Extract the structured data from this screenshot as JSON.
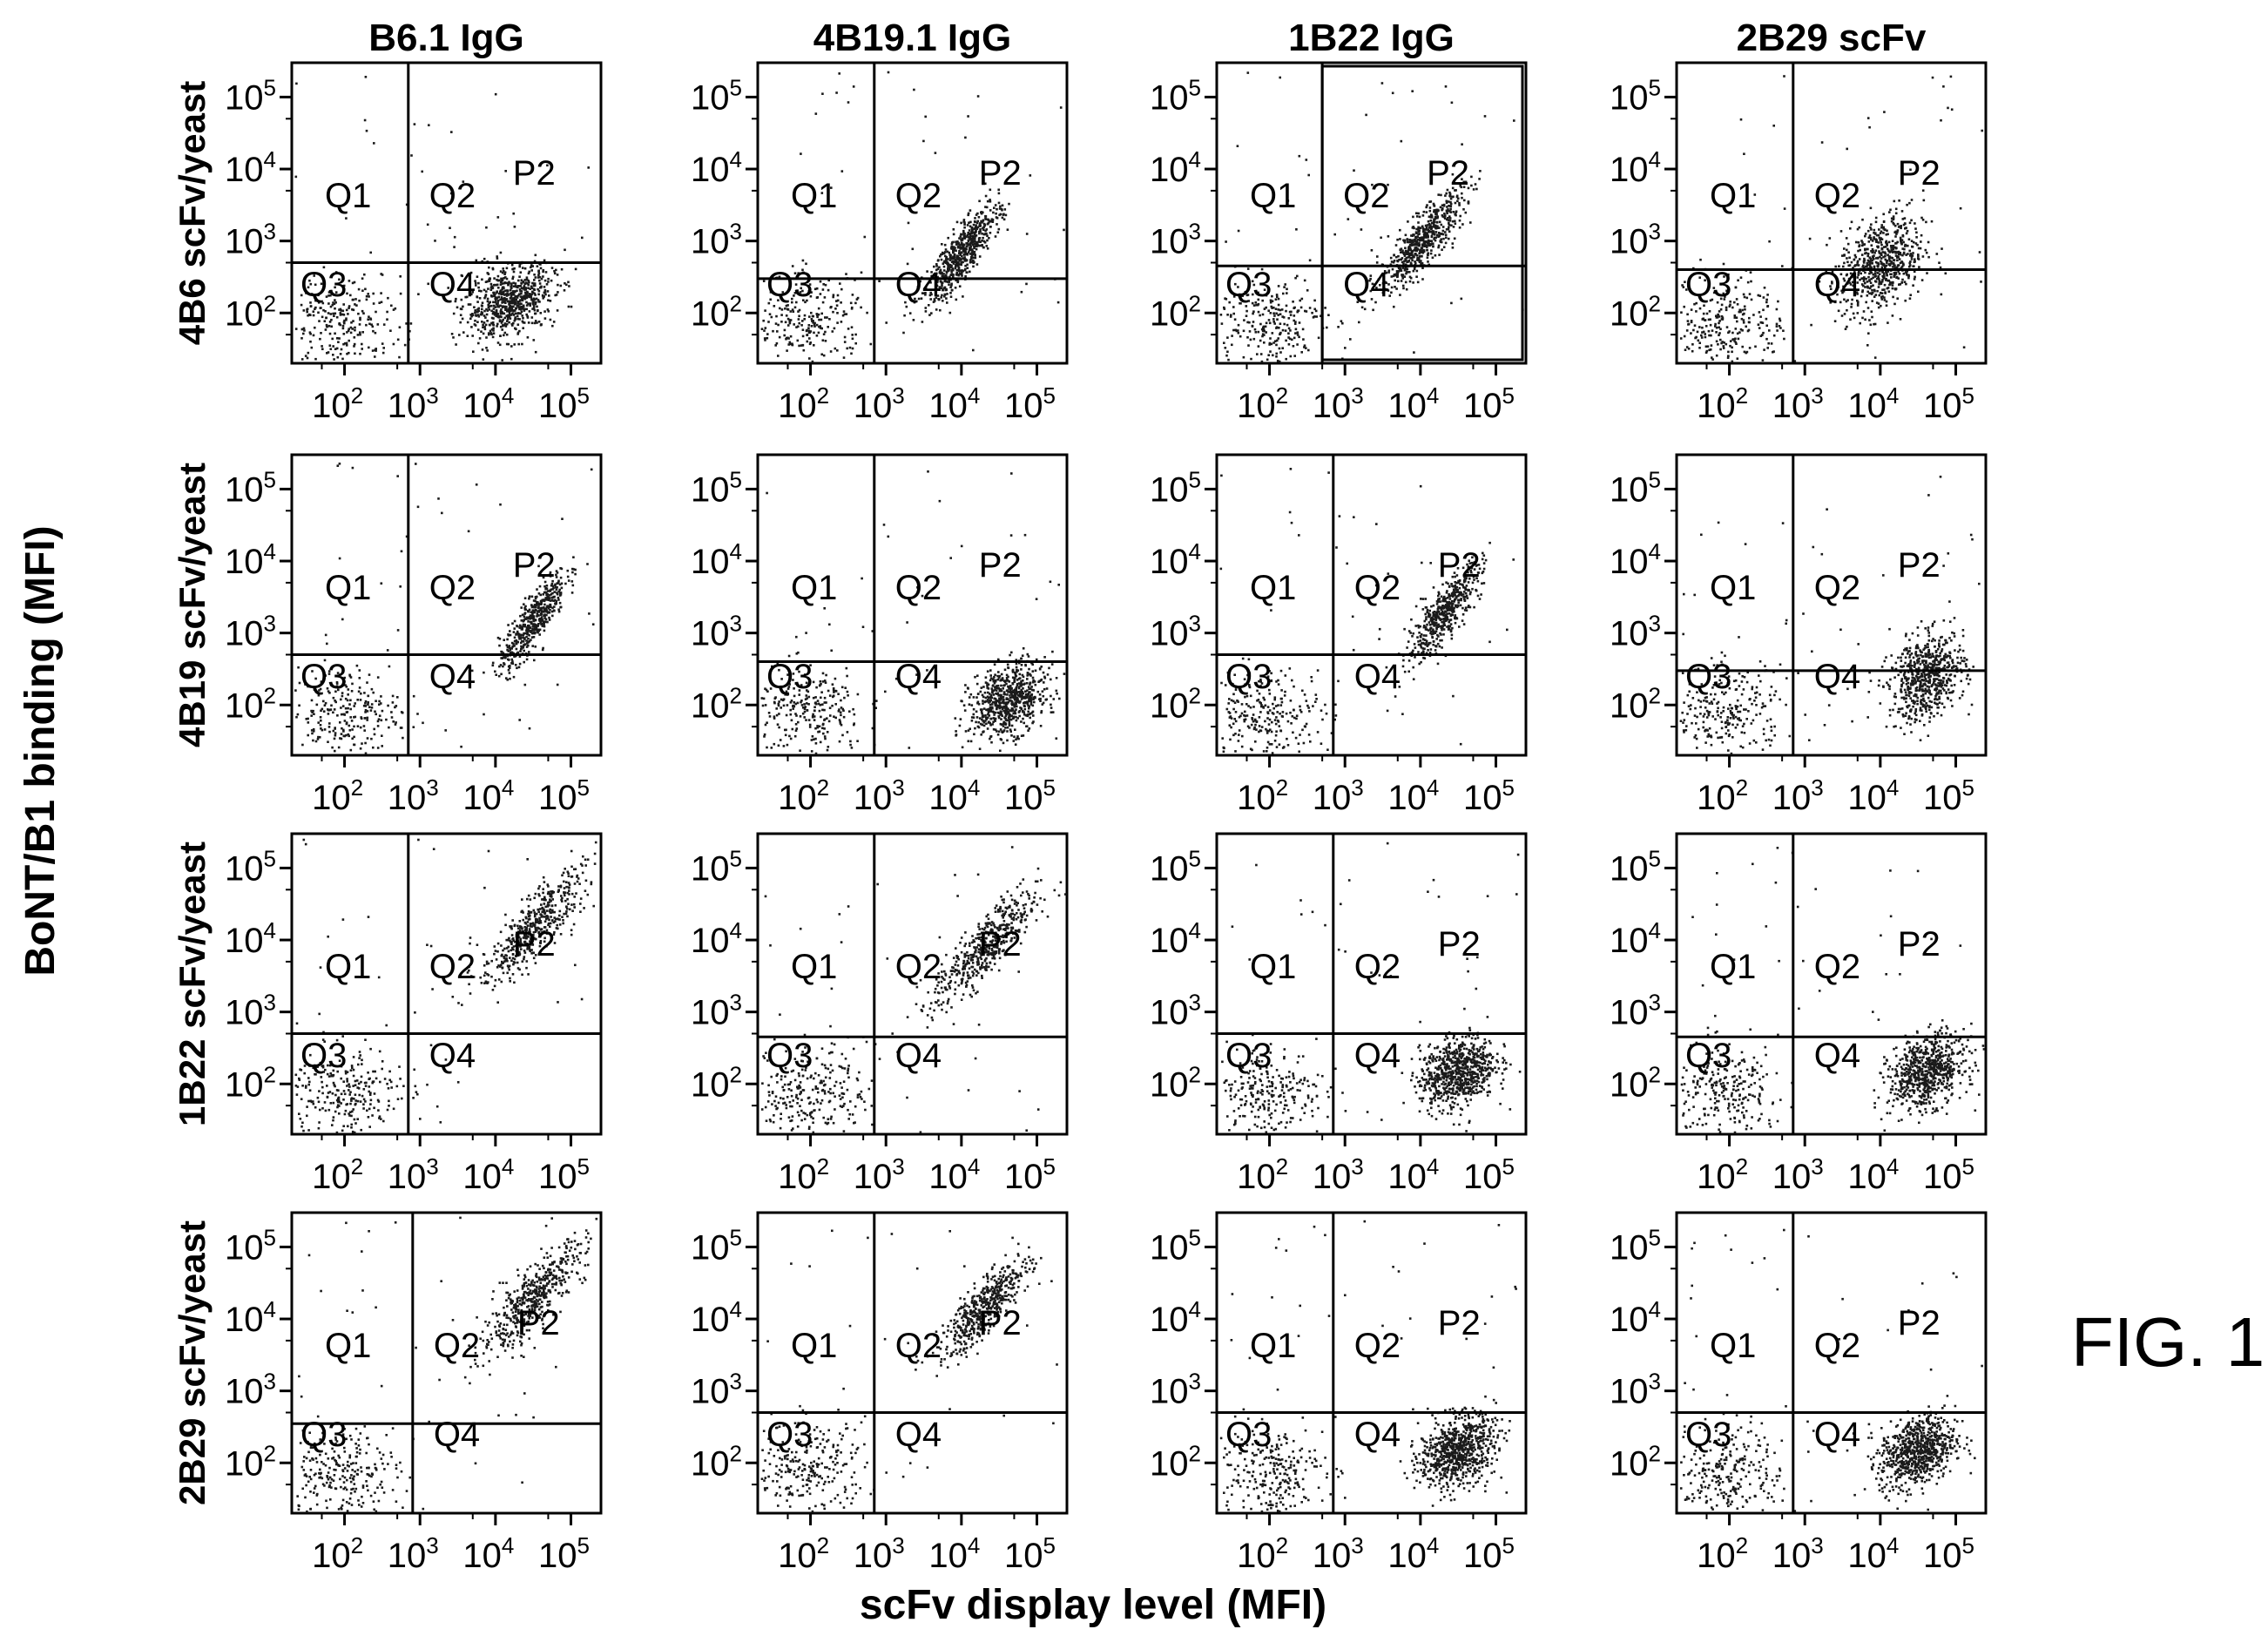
{
  "figure_label": "FIG. 1",
  "x_axis_title": "scFv display level (MFI)",
  "y_axis_title": "BoNT/B1 binding (MFI)",
  "colors": {
    "ink": "#000000",
    "background": "#ffffff",
    "dots": "#1a1a1a"
  },
  "chart_data": {
    "type": "scatter",
    "layout": "4x4 grid of flow cytometry dot plots with quadrant gates",
    "x_scale": "log",
    "y_scale": "log",
    "xlim": [
      20,
      250000
    ],
    "ylim": [
      20,
      300000
    ],
    "x_ticks": [
      {
        "base": "10",
        "exp": "2"
      },
      {
        "base": "10",
        "exp": "3"
      },
      {
        "base": "10",
        "exp": "4"
      },
      {
        "base": "10",
        "exp": "5"
      }
    ],
    "y_ticks": [
      {
        "base": "10",
        "exp": "2"
      },
      {
        "base": "10",
        "exp": "3"
      },
      {
        "base": "10",
        "exp": "4"
      },
      {
        "base": "10",
        "exp": "5"
      }
    ],
    "columns": [
      "B6.1 IgG",
      "4B19.1 IgG",
      "1B22 IgG",
      "2B29 scFv"
    ],
    "rows": [
      "4B6 scFv/yeast",
      "4B19 scFv/yeast",
      "1B22 scFv/yeast",
      "2B29 scFv/yeast"
    ],
    "quadrant_labels": [
      "Q1",
      "Q2",
      "Q3",
      "Q4",
      "P2"
    ],
    "panels": [
      {
        "row": 0,
        "col": 0,
        "x_gate": 700,
        "y_gate": 500,
        "populations": [
          {
            "x": 15000,
            "y": 150,
            "spread": [
              0.3,
              0.25
            ],
            "n": 700
          }
        ],
        "gated": false
      },
      {
        "row": 0,
        "col": 1,
        "x_gate": 700,
        "y_gate": 300,
        "populations": [
          {
            "x": 10000,
            "y": 700,
            "spread": [
              0.25,
              0.35
            ],
            "n": 600
          }
        ],
        "gated": false
      },
      {
        "row": 0,
        "col": 2,
        "x_gate": 500,
        "y_gate": 450,
        "populations": [
          {
            "x": 10000,
            "y": 1000,
            "spread": [
              0.28,
              0.35
            ],
            "n": 600
          }
        ],
        "gated": true
      },
      {
        "row": 0,
        "col": 3,
        "x_gate": 700,
        "y_gate": 400,
        "populations": [
          {
            "x": 10000,
            "y": 500,
            "spread": [
              0.28,
              0.35
            ],
            "n": 650
          }
        ],
        "gated": false
      },
      {
        "row": 1,
        "col": 0,
        "x_gate": 700,
        "y_gate": 500,
        "populations": [
          {
            "x": 30000,
            "y": 1500,
            "spread": [
              0.22,
              0.35
            ],
            "n": 500
          }
        ],
        "gated": false
      },
      {
        "row": 1,
        "col": 1,
        "x_gate": 700,
        "y_gate": 400,
        "populations": [
          {
            "x": 40000,
            "y": 120,
            "spread": [
              0.25,
              0.25
            ],
            "n": 700
          }
        ],
        "gated": false
      },
      {
        "row": 1,
        "col": 2,
        "x_gate": 700,
        "y_gate": 500,
        "populations": [
          {
            "x": 20000,
            "y": 2000,
            "spread": [
              0.25,
              0.35
            ],
            "n": 500
          }
        ],
        "gated": false
      },
      {
        "row": 1,
        "col": 3,
        "x_gate": 700,
        "y_gate": 300,
        "populations": [
          {
            "x": 40000,
            "y": 250,
            "spread": [
              0.25,
              0.3
            ],
            "n": 650
          }
        ],
        "gated": false
      },
      {
        "row": 2,
        "col": 0,
        "x_gate": 700,
        "y_gate": 500,
        "populations": [
          {
            "x": 30000,
            "y": 15000,
            "spread": [
              0.35,
              0.4
            ],
            "n": 500
          }
        ],
        "gated": false
      },
      {
        "row": 2,
        "col": 1,
        "x_gate": 700,
        "y_gate": 450,
        "populations": [
          {
            "x": 20000,
            "y": 8000,
            "spread": [
              0.35,
              0.4
            ],
            "n": 500
          }
        ],
        "gated": false
      },
      {
        "row": 2,
        "col": 2,
        "x_gate": 700,
        "y_gate": 500,
        "populations": [
          {
            "x": 30000,
            "y": 150,
            "spread": [
              0.25,
              0.25
            ],
            "n": 750
          }
        ],
        "gated": false
      },
      {
        "row": 2,
        "col": 3,
        "x_gate": 700,
        "y_gate": 450,
        "populations": [
          {
            "x": 40000,
            "y": 150,
            "spread": [
              0.25,
              0.25
            ],
            "n": 700
          }
        ],
        "gated": false
      },
      {
        "row": 3,
        "col": 0,
        "x_gate": 800,
        "y_gate": 350,
        "populations": [
          {
            "x": 30000,
            "y": 20000,
            "spread": [
              0.35,
              0.4
            ],
            "n": 500
          }
        ],
        "gated": false
      },
      {
        "row": 3,
        "col": 1,
        "x_gate": 700,
        "y_gate": 500,
        "populations": [
          {
            "x": 20000,
            "y": 15000,
            "spread": [
              0.3,
              0.35
            ],
            "n": 500
          }
        ],
        "gated": false
      },
      {
        "row": 3,
        "col": 2,
        "x_gate": 700,
        "y_gate": 500,
        "populations": [
          {
            "x": 30000,
            "y": 150,
            "spread": [
              0.25,
              0.25
            ],
            "n": 750
          }
        ],
        "gated": false
      },
      {
        "row": 3,
        "col": 3,
        "x_gate": 700,
        "y_gate": 500,
        "populations": [
          {
            "x": 30000,
            "y": 150,
            "spread": [
              0.25,
              0.25
            ],
            "n": 750
          }
        ],
        "gated": false
      }
    ]
  }
}
